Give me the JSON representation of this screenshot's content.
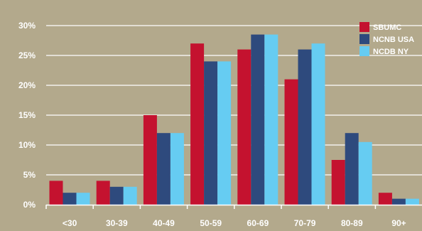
{
  "chart_data": {
    "type": "bar",
    "title": "",
    "xlabel": "",
    "ylabel": "",
    "categories": [
      "<30",
      "30-39",
      "40-49",
      "50-59",
      "60-69",
      "70-79",
      "80-89",
      "90+"
    ],
    "series": [
      {
        "name": "SBUMC",
        "color": "#c4122f",
        "values": [
          4,
          4,
          15,
          27,
          26,
          21,
          7.5,
          2
        ]
      },
      {
        "name": "NCNB USA",
        "color": "#2e4a7d",
        "values": [
          2,
          3,
          12,
          24,
          28.5,
          26,
          12,
          1
        ]
      },
      {
        "name": "NCDB NY",
        "color": "#66ccf2",
        "values": [
          2,
          3,
          12,
          24,
          28.5,
          27,
          10.5,
          1
        ]
      }
    ],
    "ylim": [
      0,
      30
    ],
    "yticks": [
      0,
      5,
      10,
      15,
      20,
      25,
      30
    ],
    "ytick_labels": [
      "0%",
      "5%",
      "10%",
      "15%",
      "20%",
      "25%",
      "30%"
    ],
    "grid": true,
    "legend_position": "top-right",
    "background_color": "#b3a98c",
    "grid_color": "#ffffff"
  }
}
